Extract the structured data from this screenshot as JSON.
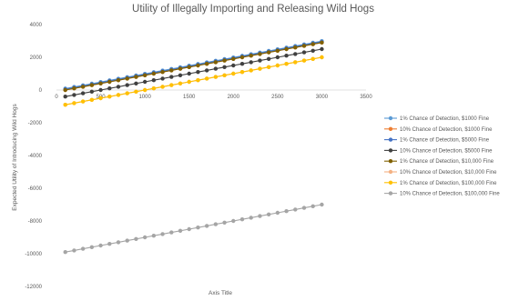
{
  "chart_data": {
    "type": "line",
    "title": "Utility of Illegally Importing and Releasing Wild Hogs",
    "xlabel": "Axis Title",
    "ylabel": "Expected Utility of Introducing Wild Hogs",
    "xlim": [
      0,
      3500
    ],
    "ylim": [
      -12000,
      4000
    ],
    "x_ticks": [
      "0",
      "500",
      "1000",
      "1500",
      "2000",
      "2500",
      "3000",
      "3500"
    ],
    "y_ticks": [
      "4000",
      "2000",
      "0",
      "-2000",
      "-4000",
      "-6000",
      "-8000",
      "-10000",
      "-12000"
    ],
    "grid": false,
    "legend_position": "right",
    "x": [
      100,
      200,
      300,
      400,
      500,
      600,
      700,
      800,
      900,
      1000,
      1100,
      1200,
      1300,
      1400,
      1500,
      1600,
      1700,
      1800,
      1900,
      2000,
      2100,
      2200,
      2300,
      2400,
      2500,
      2600,
      2700,
      2800,
      2900,
      3000
    ],
    "series": [
      {
        "name": "1% Chance of Detection, $1000 Fine",
        "color": "#5b9bd5",
        "intercept": -10,
        "slope": 1
      },
      {
        "name": "10% Chance of Detection, $1000 Fine",
        "color": "#ed7d31",
        "intercept": -100,
        "slope": 1
      },
      {
        "name": "1% Chance of Detection, $5000 Fine",
        "color": "#4472c4",
        "intercept": -50,
        "slope": 1
      },
      {
        "name": "10% Chance of Detection, $5000 Fine",
        "color": "#404040",
        "intercept": -500,
        "slope": 1
      },
      {
        "name": "1% Chance of Detection, $10,000 Fine",
        "color": "#806000",
        "intercept": -100,
        "slope": 1
      },
      {
        "name": "10% Chance of Detection, $10,000 Fine",
        "color": "#f4b183",
        "intercept": -1000,
        "slope": 1
      },
      {
        "name": "1% Chance of Detection, $100,000 Fine",
        "color": "#ffc000",
        "intercept": -1000,
        "slope": 1
      },
      {
        "name": "10% Chance of Detection, $100,000 Fine",
        "color": "#a5a5a5",
        "intercept": -10000,
        "slope": 1
      }
    ]
  }
}
